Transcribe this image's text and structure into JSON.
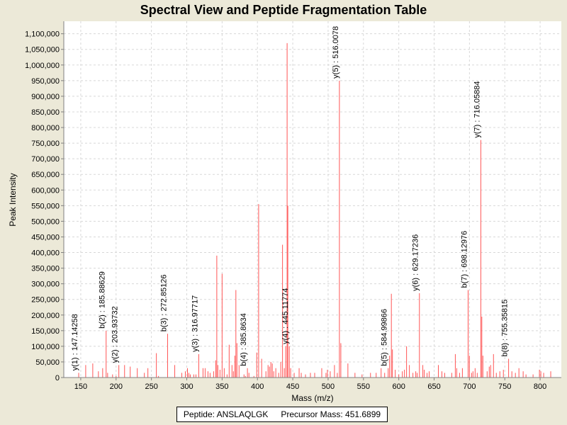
{
  "chart_data": {
    "type": "bar",
    "title": "Spectral View and Peptide Fragmentation Table",
    "xlabel": "Mass (m/z)",
    "ylabel": "Peak Intensity",
    "xlim": [
      126,
      830
    ],
    "ylim": [
      0,
      1140000
    ],
    "xticks": [
      150,
      200,
      250,
      300,
      350,
      400,
      450,
      500,
      550,
      600,
      650,
      700,
      750,
      800
    ],
    "yticks": [
      0,
      50000,
      100000,
      150000,
      200000,
      250000,
      300000,
      350000,
      400000,
      450000,
      500000,
      550000,
      600000,
      650000,
      700000,
      750000,
      800000,
      850000,
      900000,
      950000,
      1000000,
      1050000,
      1100000
    ],
    "grid": true,
    "bar_color": "#ff5555",
    "peaks": [
      [
        147.1,
        15000
      ],
      [
        157,
        40000
      ],
      [
        167,
        45000
      ],
      [
        175,
        20000
      ],
      [
        181,
        30000
      ],
      [
        185.9,
        150000
      ],
      [
        188,
        15000
      ],
      [
        195,
        10000
      ],
      [
        200,
        5000
      ],
      [
        203.9,
        40000
      ],
      [
        212,
        40000
      ],
      [
        220,
        35000
      ],
      [
        230,
        30000
      ],
      [
        240,
        15000
      ],
      [
        245,
        30000
      ],
      [
        257,
        78000
      ],
      [
        260,
        5000
      ],
      [
        272.9,
        140000
      ],
      [
        283,
        40000
      ],
      [
        293,
        15000
      ],
      [
        298,
        20000
      ],
      [
        301,
        30000
      ],
      [
        303,
        15000
      ],
      [
        305,
        10000
      ],
      [
        310,
        10000
      ],
      [
        313,
        10000
      ],
      [
        316.98,
        75000
      ],
      [
        323,
        30000
      ],
      [
        326,
        30000
      ],
      [
        330,
        20000
      ],
      [
        333,
        15000
      ],
      [
        338,
        20000
      ],
      [
        341,
        55000
      ],
      [
        342.5,
        390000
      ],
      [
        344,
        40000
      ],
      [
        347,
        25000
      ],
      [
        350,
        332000
      ],
      [
        353,
        30000
      ],
      [
        357,
        10000
      ],
      [
        360,
        105000
      ],
      [
        364,
        40000
      ],
      [
        366,
        20000
      ],
      [
        368,
        70000
      ],
      [
        369.5,
        280000
      ],
      [
        371,
        110000
      ],
      [
        374,
        40000
      ],
      [
        381,
        10000
      ],
      [
        383,
        5000
      ],
      [
        385.86,
        30000
      ],
      [
        388,
        15000
      ],
      [
        395,
        5000
      ],
      [
        399,
        80000
      ],
      [
        401.7,
        555000
      ],
      [
        406,
        60000
      ],
      [
        412,
        20000
      ],
      [
        415,
        40000
      ],
      [
        417,
        35000
      ],
      [
        419,
        50000
      ],
      [
        421,
        45000
      ],
      [
        423,
        20000
      ],
      [
        426,
        30000
      ],
      [
        430,
        15000
      ],
      [
        433,
        50000
      ],
      [
        435.5,
        425000
      ],
      [
        438,
        30000
      ],
      [
        440,
        100000
      ],
      [
        442,
        1070000
      ],
      [
        443,
        550000
      ],
      [
        445.1,
        100000
      ],
      [
        447,
        30000
      ],
      [
        452,
        15000
      ],
      [
        459,
        30000
      ],
      [
        462,
        15000
      ],
      [
        468,
        10000
      ],
      [
        475,
        15000
      ],
      [
        481,
        15000
      ],
      [
        491,
        30000
      ],
      [
        497,
        15000
      ],
      [
        499,
        25000
      ],
      [
        503,
        20000
      ],
      [
        509,
        40000
      ],
      [
        513,
        15000
      ],
      [
        516,
        950000
      ],
      [
        518,
        110000
      ],
      [
        528,
        45000
      ],
      [
        538,
        15000
      ],
      [
        548,
        10000
      ],
      [
        560,
        15000
      ],
      [
        568,
        15000
      ],
      [
        575,
        30000
      ],
      [
        580,
        15000
      ],
      [
        585,
        30000
      ],
      [
        587,
        70000
      ],
      [
        589.5,
        268000
      ],
      [
        591,
        90000
      ],
      [
        595,
        25000
      ],
      [
        600,
        10000
      ],
      [
        605,
        20000
      ],
      [
        608,
        25000
      ],
      [
        611,
        100000
      ],
      [
        615,
        40000
      ],
      [
        620,
        15000
      ],
      [
        624,
        20000
      ],
      [
        626,
        15000
      ],
      [
        629.2,
        270000
      ],
      [
        634,
        40000
      ],
      [
        636,
        25000
      ],
      [
        640,
        15000
      ],
      [
        643,
        20000
      ],
      [
        656,
        40000
      ],
      [
        661,
        20000
      ],
      [
        665,
        15000
      ],
      [
        675,
        15000
      ],
      [
        680,
        75000
      ],
      [
        682,
        30000
      ],
      [
        686,
        15000
      ],
      [
        690,
        30000
      ],
      [
        698.1,
        280000
      ],
      [
        700,
        70000
      ],
      [
        703,
        15000
      ],
      [
        705,
        20000
      ],
      [
        708,
        30000
      ],
      [
        711,
        15000
      ],
      [
        716.1,
        760000
      ],
      [
        717.5,
        195000
      ],
      [
        719,
        70000
      ],
      [
        725,
        20000
      ],
      [
        728,
        35000
      ],
      [
        730,
        40000
      ],
      [
        734,
        75000
      ],
      [
        738,
        15000
      ],
      [
        743,
        20000
      ],
      [
        748,
        25000
      ],
      [
        755.4,
        60000
      ],
      [
        760,
        20000
      ],
      [
        765,
        15000
      ],
      [
        770,
        30000
      ],
      [
        776,
        20000
      ],
      [
        780,
        10000
      ],
      [
        790,
        10000
      ],
      [
        799,
        25000
      ],
      [
        801,
        20000
      ],
      [
        805,
        15000
      ],
      [
        815,
        20000
      ]
    ],
    "annotations": [
      {
        "x": 147.14258,
        "base": 15000,
        "text": "y(1) : 147.14258"
      },
      {
        "x": 185.88629,
        "base": 150000,
        "text": "b(2) : 185.88629"
      },
      {
        "x": 203.93732,
        "base": 40000,
        "text": "y(2) : 203.93732"
      },
      {
        "x": 272.85126,
        "base": 140000,
        "text": "b(3) : 272.85126"
      },
      {
        "x": 316.97717,
        "base": 75000,
        "text": "y(3) : 316.97717"
      },
      {
        "x": 385.8634,
        "base": 30000,
        "text": "b(4) : 385.8634"
      },
      {
        "x": 445.11774,
        "base": 100000,
        "text": "y(4) : 445.11774"
      },
      {
        "x": 516.0078,
        "base": 950000,
        "text": "y(5) : 516.0078"
      },
      {
        "x": 584.99866,
        "base": 30000,
        "text": "b(5) : 584.99866"
      },
      {
        "x": 629.17236,
        "base": 270000,
        "text": "y(6) : 629.17236"
      },
      {
        "x": 698.12976,
        "base": 280000,
        "text": "b(7) : 698.12976"
      },
      {
        "x": 716.05884,
        "base": 760000,
        "text": "y(7) : 716.05884"
      },
      {
        "x": 755.35815,
        "base": 60000,
        "text": "b(8) : 755.35815"
      }
    ]
  },
  "legend": {
    "peptide_label": "Peptide: ANSLAQLGK",
    "precursor_label": "Precursor Mass: 451.6899"
  }
}
